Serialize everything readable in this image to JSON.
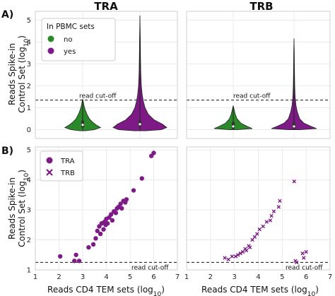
{
  "colors": {
    "green": "#2a8a2a",
    "purple": "#7d1a85",
    "frame": "#cfcfcf",
    "grid": "#e6e6e6"
  },
  "panel_labels": {
    "a": "A)",
    "b": "B)"
  },
  "chart_data": [
    {
      "type": "violin",
      "panel": "A",
      "title": "TRA",
      "ylabel": "Reads Spike-in Control Set (log10)",
      "ylim": [
        -0.4,
        5.4
      ],
      "yticks": [
        "0",
        "1",
        "2",
        "3",
        "4",
        "5"
      ],
      "categories": [
        "no",
        "yes"
      ],
      "legend": {
        "title": "In PBMC sets",
        "placement": "top-left",
        "entries": [
          "no",
          "yes"
        ]
      },
      "cutoff": {
        "value": 1.35,
        "label": "read cut-off"
      },
      "series": [
        {
          "name": "no",
          "color": "#2a8a2a",
          "min": -0.05,
          "max": 1.4,
          "median": 0.22,
          "profile": [
            [
              -0.05,
              0.1
            ],
            [
              0.0,
              0.45
            ],
            [
              0.1,
              0.7
            ],
            [
              0.2,
              0.55
            ],
            [
              0.35,
              0.38
            ],
            [
              0.5,
              0.26
            ],
            [
              0.7,
              0.17
            ],
            [
              0.9,
              0.1
            ],
            [
              1.1,
              0.05
            ],
            [
              1.3,
              0.02
            ],
            [
              1.4,
              0.0
            ]
          ]
        },
        {
          "name": "yes",
          "color": "#7d1a85",
          "min": -0.05,
          "max": 5.2,
          "median": 0.25,
          "profile": [
            [
              -0.05,
              0.2
            ],
            [
              0.0,
              0.75
            ],
            [
              0.1,
              0.95
            ],
            [
              0.25,
              0.8
            ],
            [
              0.45,
              0.5
            ],
            [
              0.7,
              0.3
            ],
            [
              1.0,
              0.18
            ],
            [
              1.3,
              0.12
            ],
            [
              1.6,
              0.08
            ],
            [
              2.0,
              0.05
            ],
            [
              2.6,
              0.03
            ],
            [
              3.3,
              0.02
            ],
            [
              4.2,
              0.012
            ],
            [
              5.2,
              0.0
            ]
          ]
        }
      ]
    },
    {
      "type": "violin",
      "panel": "A",
      "title": "TRB",
      "ylim": [
        -0.4,
        5.4
      ],
      "categories": [
        "no",
        "yes"
      ],
      "cutoff": {
        "value": 1.35,
        "label": "read cut-off"
      },
      "series": [
        {
          "name": "no",
          "color": "#2a8a2a",
          "min": 0.0,
          "max": 1.1,
          "median": 0.15,
          "profile": [
            [
              0.0,
              0.15
            ],
            [
              0.05,
              0.75
            ],
            [
              0.15,
              0.55
            ],
            [
              0.3,
              0.3
            ],
            [
              0.5,
              0.15
            ],
            [
              0.7,
              0.08
            ],
            [
              0.9,
              0.04
            ],
            [
              1.1,
              0.0
            ]
          ]
        },
        {
          "name": "yes",
          "color": "#7d1a85",
          "min": 0.0,
          "max": 4.15,
          "median": 0.15,
          "profile": [
            [
              0.0,
              0.2
            ],
            [
              0.05,
              0.8
            ],
            [
              0.15,
              0.6
            ],
            [
              0.3,
              0.35
            ],
            [
              0.5,
              0.2
            ],
            [
              0.8,
              0.12
            ],
            [
              1.1,
              0.07
            ],
            [
              1.5,
              0.04
            ],
            [
              2.0,
              0.025
            ],
            [
              2.8,
              0.015
            ],
            [
              3.5,
              0.01
            ],
            [
              4.15,
              0.0
            ]
          ]
        }
      ]
    },
    {
      "type": "scatter",
      "panel": "B",
      "xlabel": "Reads CD4 TEM sets (log10)",
      "ylabel": "Reads Spike-in Control Set (log10)",
      "xlim": [
        1,
        7
      ],
      "ylim": [
        1,
        5.1
      ],
      "xticks": [
        "1",
        "2",
        "3",
        "4",
        "5",
        "6",
        "7"
      ],
      "yticks": [
        "1",
        "2",
        "3",
        "4",
        "5"
      ],
      "legend": {
        "placement": "top-left",
        "entries": [
          "TRA"
        ]
      },
      "cutoff": {
        "value": 1.25,
        "label": "read cut-off"
      },
      "series": [
        {
          "name": "TRA",
          "marker": "circle",
          "color": "#7d1a85",
          "x": [
            2.05,
            2.65,
            2.72,
            2.85,
            3.25,
            3.45,
            3.55,
            3.62,
            3.7,
            3.75,
            3.8,
            3.88,
            3.92,
            3.97,
            4.0,
            4.05,
            4.12,
            4.2,
            4.25,
            4.32,
            4.4,
            4.45,
            4.52,
            4.6,
            4.65,
            4.72,
            4.8,
            4.85,
            5.15,
            5.5,
            5.9,
            6.0
          ],
          "y": [
            1.45,
            1.3,
            1.5,
            1.3,
            1.75,
            1.85,
            2.05,
            2.3,
            2.45,
            2.2,
            2.55,
            2.35,
            2.6,
            2.5,
            2.7,
            2.55,
            2.75,
            2.85,
            2.65,
            2.95,
            2.9,
            3.05,
            3.1,
            3.2,
            3.05,
            3.3,
            3.25,
            3.35,
            3.65,
            4.05,
            4.8,
            4.9
          ]
        }
      ]
    },
    {
      "type": "scatter",
      "panel": "B",
      "xlabel": "Reads CD4 TEM sets (log10)",
      "xlim": [
        1,
        7
      ],
      "ylim": [
        1,
        5.1
      ],
      "legend": {
        "placement": "top-left",
        "entries": [
          "TRB"
        ]
      },
      "cutoff": {
        "value": 1.25,
        "label": "read cut-off"
      },
      "series": [
        {
          "name": "TRB",
          "marker": "x",
          "color": "#7d1a85",
          "x": [
            2.6,
            2.75,
            2.9,
            3.05,
            3.15,
            3.25,
            3.35,
            3.45,
            3.5,
            3.6,
            3.65,
            3.75,
            3.85,
            3.95,
            4.05,
            4.2,
            4.35,
            4.5,
            4.55,
            4.65,
            4.85,
            4.9,
            5.5,
            5.55,
            5.6,
            5.85,
            5.9,
            6.0
          ],
          "y": [
            1.4,
            1.35,
            1.45,
            1.45,
            1.5,
            1.55,
            1.6,
            1.7,
            1.65,
            1.8,
            1.75,
            2.0,
            2.1,
            2.2,
            2.35,
            2.45,
            2.6,
            2.65,
            2.8,
            2.95,
            3.1,
            3.3,
            3.95,
            1.3,
            1.25,
            1.55,
            1.4,
            1.6
          ]
        }
      ]
    }
  ]
}
